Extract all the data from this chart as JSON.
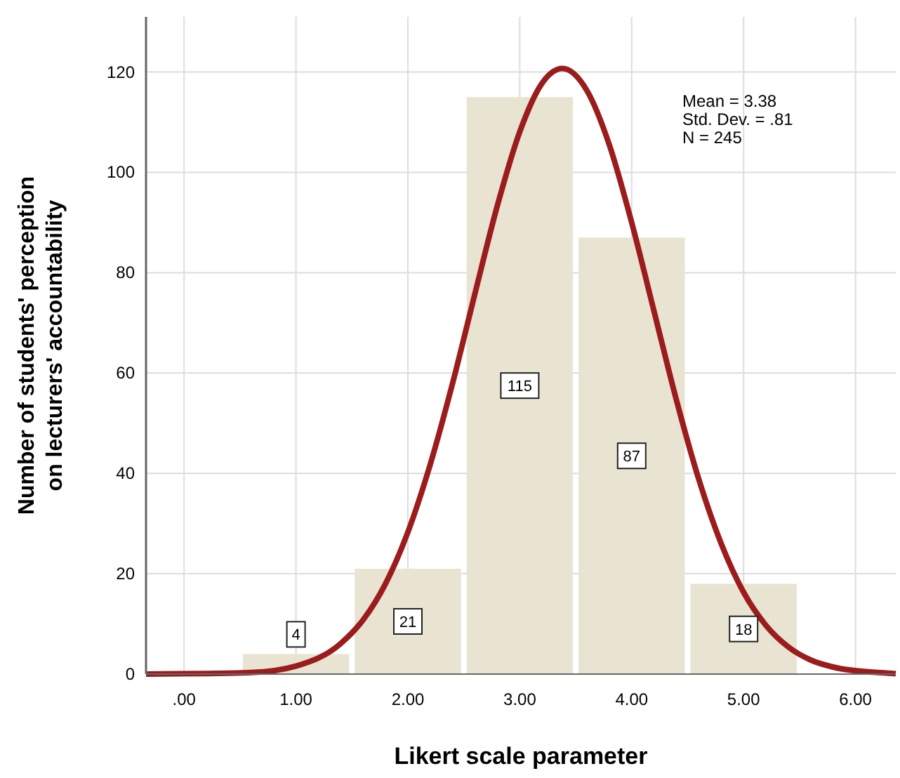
{
  "chart_data": {
    "type": "histogram",
    "xlabel": "Likert scale parameter",
    "ylabel": "Number of students' perception on lecturers' accountability",
    "bins": [
      0.5,
      1.5,
      2.5,
      3.5,
      4.5,
      5.5
    ],
    "values": [
      4,
      21,
      115,
      87,
      18
    ],
    "color": "#e9e3d2",
    "value_labels": [
      "4",
      "21",
      "115",
      "87",
      "18"
    ],
    "series": [
      {
        "type": "line",
        "color": "#9b1c1c",
        "x": [
          -0.34,
          0.2,
          0.6,
          1.0,
          1.4,
          1.6,
          1.8,
          2.0,
          2.2,
          2.4,
          2.6,
          2.8,
          3.0,
          3.2,
          3.38,
          3.6,
          3.8,
          4.0,
          4.2,
          4.4,
          4.6,
          4.8,
          5.0,
          5.2,
          5.4,
          5.6,
          5.8,
          6.2,
          6.36
        ],
        "values": [
          0,
          0.1,
          0.3,
          1.6,
          6.1,
          10.8,
          18.0,
          28.3,
          41.8,
          58.0,
          75.9,
          93.4,
          108.1,
          117.8,
          120.7,
          116.3,
          105.5,
          90.0,
          72.3,
          54.6,
          38.8,
          26.0,
          16.3,
          9.7,
          5.4,
          2.8,
          1.4,
          0.3,
          0.1
        ]
      }
    ],
    "xlim": [
      -0.34,
      6.36
    ],
    "ylim": [
      0,
      131
    ],
    "xticks": [
      {
        "value": 0,
        "label": ".00"
      },
      {
        "value": 1,
        "label": "1.00"
      },
      {
        "value": 2,
        "label": "2.00"
      },
      {
        "value": 3,
        "label": "3.00"
      },
      {
        "value": 4,
        "label": "4.00"
      },
      {
        "value": 5,
        "label": "5.00"
      },
      {
        "value": 6,
        "label": "6.00"
      }
    ],
    "yticks": [
      0,
      20,
      40,
      60,
      80,
      100,
      120
    ],
    "grid": true,
    "annotations": [
      "Mean = 3.38",
      "Std. Dev. = .81",
      "N = 245"
    ]
  }
}
